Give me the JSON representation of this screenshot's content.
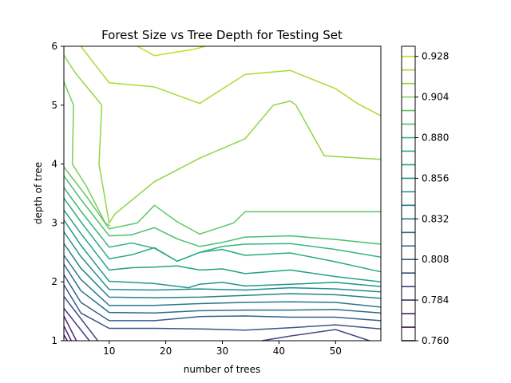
{
  "chart_data": {
    "type": "contour",
    "title": "Forest Size vs Tree Depth for Testing Set",
    "xlabel": "number of trees",
    "ylabel": "depth of tree",
    "xlim": [
      2,
      58
    ],
    "ylim": [
      1,
      6
    ],
    "x_ticks": [
      10,
      20,
      30,
      40,
      50
    ],
    "y_ticks": [
      1,
      2,
      3,
      4,
      5,
      6
    ],
    "colormap": "viridis",
    "colorbar": {
      "range": [
        0.76,
        0.934
      ],
      "level_step": 0.008,
      "tick_values": [
        0.76,
        0.784,
        0.808,
        0.832,
        0.856,
        0.88,
        0.904,
        0.928
      ],
      "tick_labels": [
        "0.760",
        "0.784",
        "0.808",
        "0.832",
        "0.856",
        "0.880",
        "0.904",
        "0.928"
      ]
    },
    "contours": [
      {
        "level": 0.928,
        "points": [
          [
            15,
            6.0
          ],
          [
            18,
            5.84
          ],
          [
            25,
            5.95
          ],
          [
            27,
            6.0
          ]
        ]
      },
      {
        "level": 0.92,
        "points": [
          [
            5,
            6.0
          ],
          [
            10,
            5.38
          ],
          [
            18,
            5.31
          ],
          [
            26,
            5.03
          ],
          [
            34,
            5.52
          ],
          [
            42,
            5.59
          ],
          [
            50,
            5.28
          ],
          [
            54,
            5.02
          ],
          [
            58,
            4.82
          ]
        ]
      },
      {
        "level": 0.912,
        "points": [
          [
            2,
            5.85
          ],
          [
            4,
            5.55
          ],
          [
            7,
            5.2
          ],
          [
            8.7,
            5.0
          ],
          [
            8.2,
            4.0
          ],
          [
            10,
            3.0
          ],
          [
            11,
            3.15
          ],
          [
            18,
            3.7
          ],
          [
            24,
            4.0
          ],
          [
            26,
            4.1
          ],
          [
            34,
            4.43
          ],
          [
            39,
            5.0
          ],
          [
            42,
            5.07
          ],
          [
            43,
            5.0
          ],
          [
            48,
            4.14
          ],
          [
            58,
            4.08
          ]
        ]
      },
      {
        "level": 0.904,
        "points": [
          [
            2,
            5.4
          ],
          [
            3.7,
            5.0
          ],
          [
            3.5,
            4.0
          ],
          [
            6,
            3.62
          ],
          [
            9.3,
            3.0
          ],
          [
            10.2,
            2.95
          ]
        ]
      },
      {
        "level": 0.896,
        "points": [
          [
            2,
            3.95
          ],
          [
            6,
            3.45
          ],
          [
            10,
            2.9
          ],
          [
            15,
            3.0
          ],
          [
            18,
            3.3
          ],
          [
            22,
            3.02
          ],
          [
            26,
            2.81
          ],
          [
            32,
            3.0
          ],
          [
            34,
            3.19
          ],
          [
            58,
            3.19
          ]
        ]
      },
      {
        "level": 0.888,
        "points": [
          [
            2,
            3.8
          ],
          [
            5,
            3.4
          ],
          [
            10,
            2.78
          ],
          [
            14,
            2.8
          ],
          [
            18,
            2.92
          ],
          [
            22,
            2.73
          ],
          [
            26,
            2.6
          ],
          [
            30,
            2.67
          ],
          [
            34,
            2.76
          ],
          [
            42,
            2.78
          ],
          [
            50,
            2.72
          ],
          [
            58,
            2.64
          ]
        ]
      },
      {
        "level": 0.88,
        "points": [
          [
            2,
            3.6
          ],
          [
            5,
            3.2
          ],
          [
            10,
            2.59
          ],
          [
            14,
            2.66
          ],
          [
            18,
            2.57
          ],
          [
            22,
            2.35
          ],
          [
            26,
            2.5
          ],
          [
            30,
            2.6
          ],
          [
            34,
            2.64
          ],
          [
            42,
            2.65
          ],
          [
            50,
            2.55
          ],
          [
            58,
            2.42
          ]
        ]
      },
      {
        "level": 0.872,
        "points": [
          [
            2,
            3.42
          ],
          [
            5,
            3.02
          ],
          [
            10,
            2.39
          ],
          [
            14,
            2.46
          ],
          [
            18,
            2.58
          ],
          [
            22,
            2.35
          ],
          [
            26,
            2.5
          ],
          [
            30,
            2.55
          ],
          [
            34,
            2.45
          ],
          [
            42,
            2.49
          ],
          [
            50,
            2.34
          ],
          [
            58,
            2.17
          ]
        ]
      },
      {
        "level": 0.864,
        "points": [
          [
            2,
            3.22
          ],
          [
            5,
            2.82
          ],
          [
            10,
            2.2
          ],
          [
            14,
            2.24
          ],
          [
            18,
            2.25
          ],
          [
            22,
            2.27
          ],
          [
            26,
            2.2
          ],
          [
            30,
            2.22
          ],
          [
            34,
            2.14
          ],
          [
            42,
            2.2
          ],
          [
            50,
            2.09
          ],
          [
            58,
            2.0
          ]
        ]
      },
      {
        "level": 0.856,
        "points": [
          [
            2,
            3.05
          ],
          [
            5,
            2.62
          ],
          [
            10,
            2.01
          ],
          [
            18,
            1.97
          ],
          [
            24,
            1.9
          ],
          [
            26,
            1.96
          ],
          [
            30,
            1.99
          ],
          [
            34,
            1.93
          ],
          [
            42,
            1.96
          ],
          [
            50,
            1.99
          ],
          [
            58,
            1.92
          ]
        ]
      },
      {
        "level": 0.848,
        "points": [
          [
            2,
            2.85
          ],
          [
            5,
            2.43
          ],
          [
            10,
            1.87
          ],
          [
            18,
            1.86
          ],
          [
            26,
            1.88
          ],
          [
            34,
            1.86
          ],
          [
            42,
            1.9
          ],
          [
            50,
            1.88
          ],
          [
            58,
            1.83
          ]
        ]
      },
      {
        "level": 0.84,
        "points": [
          [
            2,
            2.65
          ],
          [
            5,
            2.23
          ],
          [
            10,
            1.74
          ],
          [
            18,
            1.73
          ],
          [
            26,
            1.74
          ],
          [
            34,
            1.77
          ],
          [
            42,
            1.8
          ],
          [
            50,
            1.78
          ],
          [
            58,
            1.72
          ]
        ]
      },
      {
        "level": 0.832,
        "points": [
          [
            2,
            2.45
          ],
          [
            5,
            2.04
          ],
          [
            10,
            1.6
          ],
          [
            18,
            1.6
          ],
          [
            26,
            1.63
          ],
          [
            34,
            1.65
          ],
          [
            42,
            1.66
          ],
          [
            50,
            1.65
          ],
          [
            58,
            1.57
          ]
        ]
      },
      {
        "level": 0.824,
        "points": [
          [
            2,
            2.3
          ],
          [
            5,
            1.85
          ],
          [
            10,
            1.48
          ],
          [
            18,
            1.47
          ],
          [
            26,
            1.51
          ],
          [
            34,
            1.52
          ],
          [
            42,
            1.52
          ],
          [
            50,
            1.53
          ],
          [
            58,
            1.47
          ]
        ]
      },
      {
        "level": 0.816,
        "points": [
          [
            2,
            2.12
          ],
          [
            5,
            1.65
          ],
          [
            10,
            1.34
          ],
          [
            18,
            1.34
          ],
          [
            26,
            1.41
          ],
          [
            34,
            1.42
          ],
          [
            42,
            1.4
          ],
          [
            50,
            1.4
          ],
          [
            58,
            1.34
          ]
        ]
      },
      {
        "level": 0.808,
        "points": [
          [
            2,
            1.95
          ],
          [
            5,
            1.47
          ],
          [
            10,
            1.21
          ],
          [
            18,
            1.21
          ],
          [
            26,
            1.2
          ],
          [
            34,
            1.18
          ],
          [
            42,
            1.22
          ],
          [
            50,
            1.27
          ],
          [
            58,
            1.2
          ]
        ]
      },
      {
        "level": 0.8,
        "points": [
          [
            2,
            1.75
          ],
          [
            8,
            1.0
          ]
        ]
      },
      {
        "level": 0.8,
        "points": [
          [
            37,
            1.0
          ],
          [
            42,
            1.08
          ],
          [
            50,
            1.19
          ],
          [
            56,
            1.0
          ]
        ]
      },
      {
        "level": 0.792,
        "points": [
          [
            2,
            1.55
          ],
          [
            6.5,
            1.0
          ]
        ]
      },
      {
        "level": 0.784,
        "points": [
          [
            2,
            1.42
          ],
          [
            4.2,
            1.0
          ]
        ]
      },
      {
        "level": 0.776,
        "points": [
          [
            2,
            1.25
          ],
          [
            3.3,
            1.0
          ]
        ]
      },
      {
        "level": 0.768,
        "points": [
          [
            2,
            1.1
          ],
          [
            2.6,
            1.0
          ]
        ]
      }
    ]
  }
}
